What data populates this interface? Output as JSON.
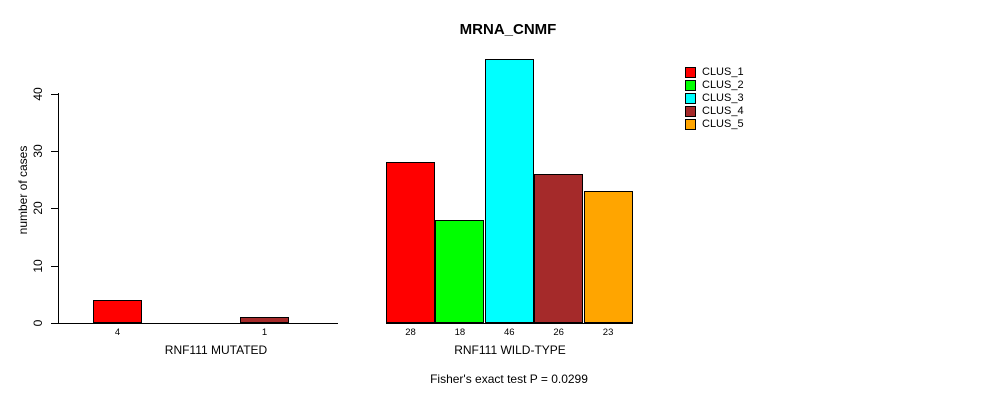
{
  "chart_data": {
    "type": "bar",
    "title": "MRNA_CNMF",
    "ylabel": "number of cases",
    "xlabel": "",
    "yticks": [
      0,
      10,
      20,
      30,
      40
    ],
    "ylim": [
      0,
      46
    ],
    "grid": false,
    "legend_position": "right",
    "clusters": [
      {
        "name": "CLUS_1",
        "color": "#FF0000"
      },
      {
        "name": "CLUS_2",
        "color": "#00FF00"
      },
      {
        "name": "CLUS_3",
        "color": "#00FFFF"
      },
      {
        "name": "CLUS_4",
        "color": "#A52A2A"
      },
      {
        "name": "CLUS_5",
        "color": "#FFA500"
      }
    ],
    "groups": [
      {
        "label": "RNF111 MUTATED",
        "values": [
          4,
          0,
          0,
          1,
          0
        ]
      },
      {
        "label": "RNF111 WILD-TYPE",
        "values": [
          28,
          18,
          46,
          26,
          23
        ]
      }
    ],
    "footnote": "Fisher's exact test P = 0.0299"
  }
}
